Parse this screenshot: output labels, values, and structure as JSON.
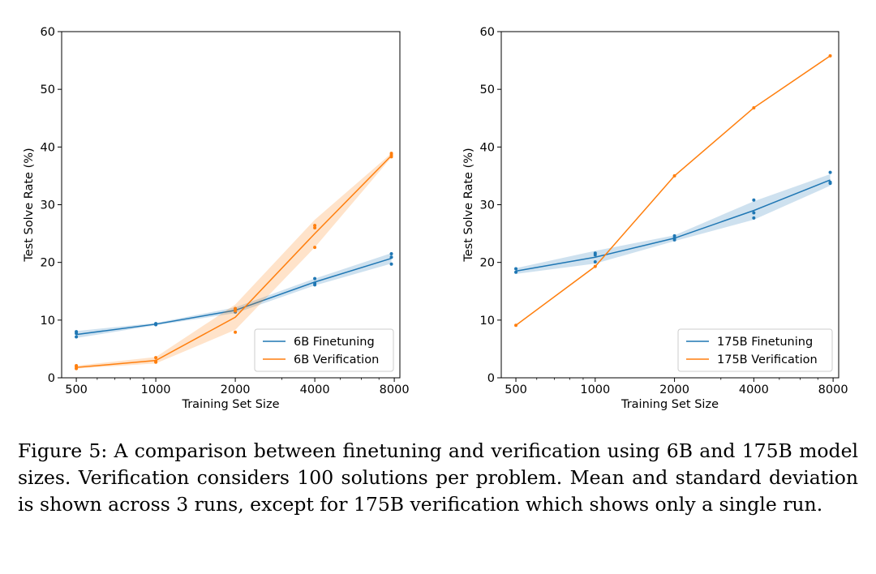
{
  "chart_data": [
    {
      "type": "line",
      "xscale": "log",
      "xlabel": "Training Set Size",
      "ylabel": "Test Solve Rate (%)",
      "xlim": [
        440,
        8400
      ],
      "ylim": [
        0,
        60
      ],
      "xticks": [
        500,
        1000,
        2000,
        4000,
        8000
      ],
      "yticks": [
        0,
        10,
        20,
        30,
        40,
        50,
        60
      ],
      "legend_position": "lower-right",
      "series": [
        {
          "name": "6B Finetuning",
          "color": "#1f77b4",
          "x": [
            500,
            1000,
            2000,
            4000,
            7800
          ],
          "mean": [
            7.5,
            9.3,
            11.7,
            16.6,
            20.7
          ],
          "band_low": [
            6.9,
            9.1,
            11.2,
            16.0,
            19.8
          ],
          "band_high": [
            8.1,
            9.5,
            12.2,
            17.2,
            21.6
          ],
          "runs": [
            [
              500,
              7.1
            ],
            [
              500,
              7.7
            ],
            [
              500,
              8.0
            ],
            [
              1000,
              9.2
            ],
            [
              1000,
              9.3
            ],
            [
              1000,
              9.4
            ],
            [
              2000,
              11.4
            ],
            [
              2000,
              11.7
            ],
            [
              2000,
              12.0
            ],
            [
              4000,
              16.1
            ],
            [
              4000,
              16.4
            ],
            [
              4000,
              17.2
            ],
            [
              7800,
              19.7
            ],
            [
              7800,
              20.9
            ],
            [
              7800,
              21.5
            ]
          ]
        },
        {
          "name": "6B Verification",
          "color": "#ff7f0e",
          "x": [
            500,
            1000,
            2000,
            4000,
            7800
          ],
          "mean": [
            1.8,
            3.0,
            10.5,
            25.0,
            38.5
          ],
          "band_low": [
            1.6,
            2.5,
            8.3,
            22.6,
            38.2
          ],
          "band_high": [
            2.1,
            3.6,
            12.7,
            27.4,
            38.9
          ],
          "runs": [
            [
              500,
              1.6
            ],
            [
              500,
              1.9
            ],
            [
              500,
              2.1
            ],
            [
              1000,
              2.7
            ],
            [
              1000,
              2.9
            ],
            [
              1000,
              3.5
            ],
            [
              2000,
              7.9
            ],
            [
              2000,
              11.6
            ],
            [
              2000,
              12.0
            ],
            [
              4000,
              22.6
            ],
            [
              4000,
              26.0
            ],
            [
              4000,
              26.4
            ],
            [
              7800,
              38.3
            ],
            [
              7800,
              38.6
            ],
            [
              7800,
              38.9
            ]
          ]
        }
      ]
    },
    {
      "type": "line",
      "xscale": "log",
      "xlabel": "Training Set Size",
      "ylabel": "Test Solve Rate (%)",
      "xlim": [
        440,
        8400
      ],
      "ylim": [
        0,
        60
      ],
      "xticks": [
        500,
        1000,
        2000,
        4000,
        8000
      ],
      "yticks": [
        0,
        10,
        20,
        30,
        40,
        50,
        60
      ],
      "legend_position": "lower-right",
      "series": [
        {
          "name": "175B Finetuning",
          "color": "#1f77b4",
          "x": [
            500,
            1000,
            2000,
            4000,
            7800
          ],
          "mean": [
            18.5,
            20.9,
            24.2,
            29.0,
            34.3
          ],
          "band_low": [
            18.0,
            19.8,
            23.7,
            27.4,
            33.3
          ],
          "band_high": [
            19.0,
            22.0,
            24.7,
            30.6,
            35.3
          ],
          "runs": [
            [
              500,
              18.3
            ],
            [
              500,
              18.9
            ],
            [
              1000,
              20.1
            ],
            [
              1000,
              21.3
            ],
            [
              1000,
              21.6
            ],
            [
              2000,
              23.9
            ],
            [
              2000,
              24.2
            ],
            [
              2000,
              24.6
            ],
            [
              4000,
              27.7
            ],
            [
              4000,
              28.6
            ],
            [
              4000,
              30.8
            ],
            [
              7800,
              33.7
            ],
            [
              7800,
              33.9
            ],
            [
              7800,
              35.6
            ]
          ]
        },
        {
          "name": "175B Verification",
          "color": "#ff7f0e",
          "x": [
            500,
            1000,
            2000,
            4000,
            7800
          ],
          "mean": [
            9.1,
            19.3,
            35.0,
            46.8,
            55.8
          ],
          "runs": [
            [
              500,
              9.1
            ],
            [
              1000,
              19.3
            ],
            [
              2000,
              35.0
            ],
            [
              4000,
              46.8
            ],
            [
              7800,
              55.8
            ]
          ]
        }
      ]
    }
  ],
  "caption": "Figure 5: A comparison between finetuning and verification using 6B and 175B model sizes. Verification considers 100 solutions per problem. Mean and standard deviation is shown across 3 runs, except for 175B verification which shows only a single run."
}
